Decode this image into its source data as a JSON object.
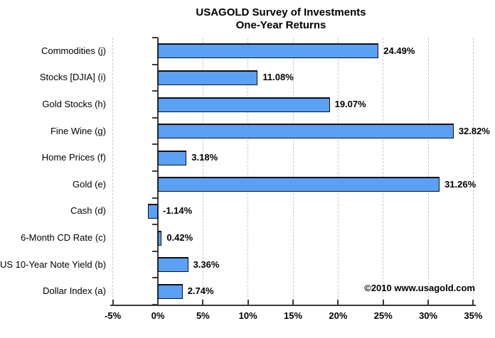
{
  "title": {
    "line1": "USAGOLD Survey of Investments",
    "line2": "One-Year Returns"
  },
  "copyright": "©2010 www.usagold.com",
  "chart_data": {
    "type": "bar",
    "orientation": "horizontal",
    "title": "USAGOLD Survey of Investments — One-Year Returns",
    "xlabel": "",
    "ylabel": "",
    "categories": [
      "Commodities (j)",
      "Stocks [DJIA] (i)",
      "Gold Stocks (h)",
      "Fine Wine (g)",
      "Home Prices (f)",
      "Gold (e)",
      "Cash (d)",
      "6-Month CD Rate (c)",
      "US 10-Year Note Yield (b)",
      "Dollar Index (a)"
    ],
    "values": [
      24.49,
      11.08,
      19.07,
      32.82,
      3.18,
      31.26,
      -1.14,
      0.42,
      3.36,
      2.74
    ],
    "value_labels": [
      "24.49%",
      "11.08%",
      "19.07%",
      "32.82%",
      "3.18%",
      "31.26%",
      "-1.14%",
      "0.42%",
      "3.36%",
      "2.74%"
    ],
    "xlim": [
      -5,
      35
    ],
    "x_ticks": [
      -5,
      0,
      5,
      10,
      15,
      20,
      25,
      30,
      35
    ],
    "x_tick_labels": [
      "-5%",
      "0%",
      "5%",
      "10%",
      "15%",
      "20%",
      "25%",
      "30%",
      "35%"
    ],
    "grid": "vertical-dashed",
    "legend": "none",
    "colors": {
      "bar_fill": "#5aa0f5",
      "bar_border": "#101014",
      "grid": "#c8c8c8",
      "axis": "#3a3a3a",
      "text": "#000000"
    }
  }
}
